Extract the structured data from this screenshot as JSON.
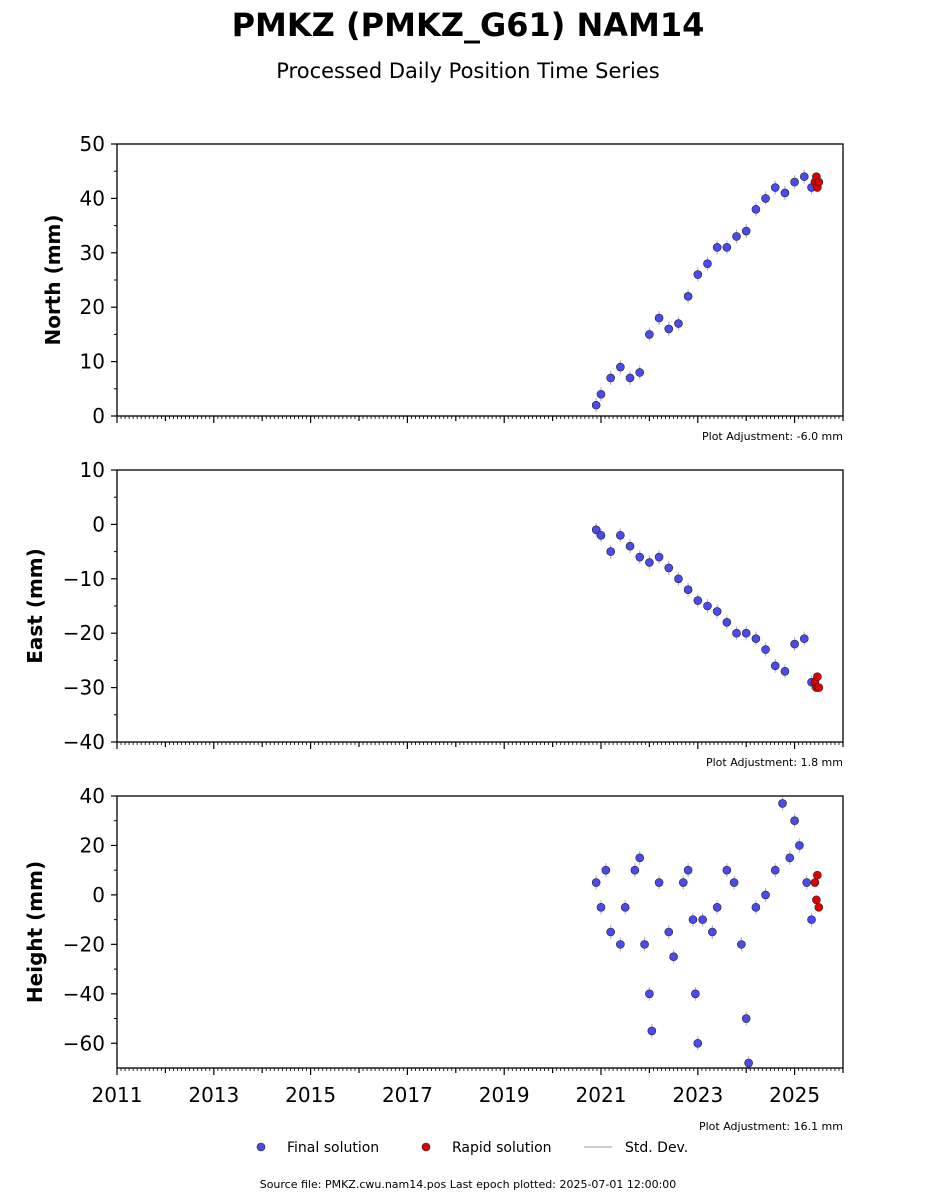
{
  "title": "PMKZ (PMKZ_G61) NAM14",
  "subtitle": "Processed Daily Position Time Series",
  "footer": "Source file: PMKZ.cwu.nam14.pos  Last epoch plotted: 2025-07-01 12:00:00",
  "legend": {
    "final": "Final solution",
    "rapid": "Rapid solution",
    "std": "Std. Dev.",
    "final_color": "#4a4af0",
    "rapid_color": "#e00000",
    "std_color": "#bbbbbb"
  },
  "chart_data": [
    {
      "type": "scatter",
      "ylabel": "North (mm)",
      "ylim": [
        0,
        50
      ],
      "yticks": [
        0,
        10,
        20,
        30,
        40,
        50
      ],
      "ytick_labels": [
        "0",
        "10",
        "20",
        "30",
        "40",
        "50"
      ],
      "xlim": [
        2011,
        2026
      ],
      "xticks": [
        2011,
        2013,
        2015,
        2017,
        2019,
        2021,
        2023,
        2025
      ],
      "xtick_labels": [],
      "adjustment": "Plot Adjustment: -6.0 mm",
      "final_series": {
        "name": "Final solution",
        "points": [
          [
            2020.9,
            2
          ],
          [
            2021.0,
            4
          ],
          [
            2021.2,
            7
          ],
          [
            2021.4,
            9
          ],
          [
            2021.6,
            7
          ],
          [
            2021.8,
            8
          ],
          [
            2022.0,
            15
          ],
          [
            2022.2,
            18
          ],
          [
            2022.4,
            16
          ],
          [
            2022.6,
            17
          ],
          [
            2022.8,
            22
          ],
          [
            2023.0,
            26
          ],
          [
            2023.2,
            28
          ],
          [
            2023.4,
            31
          ],
          [
            2023.6,
            31
          ],
          [
            2023.8,
            33
          ],
          [
            2024.0,
            34
          ],
          [
            2024.2,
            38
          ],
          [
            2024.4,
            40
          ],
          [
            2024.6,
            42
          ],
          [
            2024.8,
            41
          ],
          [
            2025.0,
            43
          ],
          [
            2025.2,
            44
          ],
          [
            2025.35,
            42
          ]
        ]
      },
      "rapid_series": {
        "name": "Rapid solution",
        "points": [
          [
            2025.42,
            43
          ],
          [
            2025.45,
            44
          ],
          [
            2025.47,
            42
          ],
          [
            2025.5,
            43
          ]
        ]
      }
    },
    {
      "type": "scatter",
      "ylabel": "East (mm)",
      "ylim": [
        -40,
        10
      ],
      "yticks": [
        -40,
        -30,
        -20,
        -10,
        0,
        10
      ],
      "ytick_labels": [
        "−40",
        "−30",
        "−20",
        "−10",
        "0",
        "10"
      ],
      "xlim": [
        2011,
        2026
      ],
      "xticks": [
        2011,
        2013,
        2015,
        2017,
        2019,
        2021,
        2023,
        2025
      ],
      "xtick_labels": [],
      "adjustment": "Plot Adjustment: 1.8 mm",
      "final_series": {
        "name": "Final solution",
        "points": [
          [
            2020.9,
            -1
          ],
          [
            2021.0,
            -2
          ],
          [
            2021.2,
            -5
          ],
          [
            2021.4,
            -2
          ],
          [
            2021.6,
            -4
          ],
          [
            2021.8,
            -6
          ],
          [
            2022.0,
            -7
          ],
          [
            2022.2,
            -6
          ],
          [
            2022.4,
            -8
          ],
          [
            2022.6,
            -10
          ],
          [
            2022.8,
            -12
          ],
          [
            2023.0,
            -14
          ],
          [
            2023.2,
            -15
          ],
          [
            2023.4,
            -16
          ],
          [
            2023.6,
            -18
          ],
          [
            2023.8,
            -20
          ],
          [
            2024.0,
            -20
          ],
          [
            2024.2,
            -21
          ],
          [
            2024.4,
            -23
          ],
          [
            2024.6,
            -26
          ],
          [
            2024.8,
            -27
          ],
          [
            2025.0,
            -22
          ],
          [
            2025.2,
            -21
          ],
          [
            2025.35,
            -29
          ]
        ]
      },
      "rapid_series": {
        "name": "Rapid solution",
        "points": [
          [
            2025.42,
            -29
          ],
          [
            2025.45,
            -30
          ],
          [
            2025.47,
            -28
          ],
          [
            2025.5,
            -30
          ]
        ]
      }
    },
    {
      "type": "scatter",
      "ylabel": "Height (mm)",
      "ylim": [
        -70,
        40
      ],
      "yticks": [
        -60,
        -40,
        -20,
        0,
        20,
        40
      ],
      "ytick_labels": [
        "−60",
        "−40",
        "−20",
        "0",
        "20",
        "40"
      ],
      "xlim": [
        2011,
        2026
      ],
      "xticks": [
        2011,
        2013,
        2015,
        2017,
        2019,
        2021,
        2023,
        2025
      ],
      "xtick_labels": [
        "2011",
        "2013",
        "2015",
        "2017",
        "2019",
        "2021",
        "2023",
        "2025"
      ],
      "adjustment": "Plot Adjustment: 16.1 mm",
      "final_series": {
        "name": "Final solution",
        "points": [
          [
            2020.9,
            5
          ],
          [
            2021.0,
            -5
          ],
          [
            2021.1,
            10
          ],
          [
            2021.2,
            -15
          ],
          [
            2021.4,
            -20
          ],
          [
            2021.5,
            -5
          ],
          [
            2021.7,
            10
          ],
          [
            2021.8,
            15
          ],
          [
            2021.9,
            -20
          ],
          [
            2022.0,
            -40
          ],
          [
            2022.05,
            -55
          ],
          [
            2022.2,
            5
          ],
          [
            2022.4,
            -15
          ],
          [
            2022.5,
            -25
          ],
          [
            2022.7,
            5
          ],
          [
            2022.8,
            10
          ],
          [
            2022.9,
            -10
          ],
          [
            2022.95,
            -40
          ],
          [
            2023.0,
            -60
          ],
          [
            2023.1,
            -10
          ],
          [
            2023.3,
            -15
          ],
          [
            2023.4,
            -5
          ],
          [
            2023.6,
            10
          ],
          [
            2023.75,
            5
          ],
          [
            2023.9,
            -20
          ],
          [
            2024.0,
            -50
          ],
          [
            2024.05,
            -68
          ],
          [
            2024.2,
            -5
          ],
          [
            2024.4,
            0
          ],
          [
            2024.6,
            10
          ],
          [
            2024.75,
            37
          ],
          [
            2024.9,
            15
          ],
          [
            2025.0,
            30
          ],
          [
            2025.1,
            20
          ],
          [
            2025.25,
            5
          ],
          [
            2025.35,
            -10
          ]
        ]
      },
      "rapid_series": {
        "name": "Rapid solution",
        "points": [
          [
            2025.42,
            5
          ],
          [
            2025.45,
            -2
          ],
          [
            2025.47,
            8
          ],
          [
            2025.5,
            -5
          ]
        ]
      }
    }
  ]
}
